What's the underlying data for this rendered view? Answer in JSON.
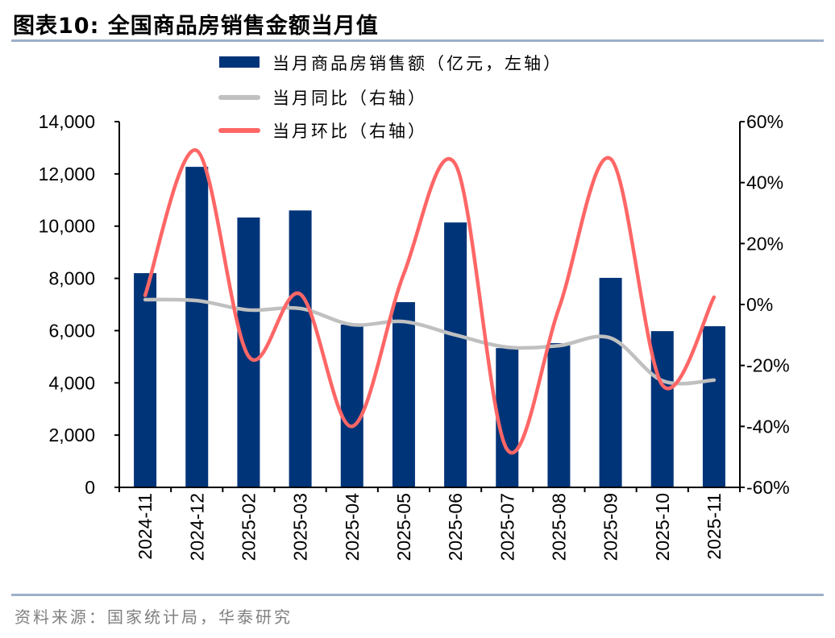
{
  "title": "图表10:  全国商品房销售金额当月值",
  "source": "资料来源：国家统计局，华泰研究",
  "chart_data": {
    "type": "bar+line",
    "categories": [
      "2024-11",
      "2024-12",
      "2025-02",
      "2025-03",
      "2025-04",
      "2025-05",
      "2025-06",
      "2025-07",
      "2025-08",
      "2025-09",
      "2025-10",
      "2025-11"
    ],
    "series": [
      {
        "name": "当月商品房销售额（亿元，左轴）",
        "type": "bar",
        "axis": "left",
        "color": "#003478",
        "values": [
          8200,
          12270,
          10330,
          10600,
          6230,
          7090,
          10140,
          5330,
          5520,
          8020,
          5980,
          6170
        ]
      },
      {
        "name": "当月同比（右轴）",
        "type": "line",
        "axis": "right",
        "color": "#c0c0c0",
        "values": [
          1.6,
          1.3,
          -1.8,
          -1.3,
          -6.6,
          -5.6,
          -10.0,
          -14.0,
          -13.5,
          -11.0,
          -25.0,
          -24.8
        ]
      },
      {
        "name": "当月环比（右轴）",
        "type": "line",
        "axis": "right",
        "color": "#ff6666",
        "values": [
          3.0,
          50.5,
          -17.0,
          3.4,
          -40.0,
          10.0,
          46.0,
          -47.6,
          -1.3,
          47.8,
          -26.4,
          2.4
        ]
      }
    ],
    "left_axis": {
      "ylim": [
        0,
        14000
      ],
      "ticks": [
        "0",
        "2,000",
        "4,000",
        "6,000",
        "8,000",
        "10,000",
        "12,000",
        "14,000"
      ]
    },
    "right_axis": {
      "ylim": [
        -60,
        60
      ],
      "ticks": [
        "-60%",
        "-40%",
        "-20%",
        "0%",
        "20%",
        "40%",
        "60%"
      ]
    },
    "legend_position": "top-center",
    "grid": false
  }
}
